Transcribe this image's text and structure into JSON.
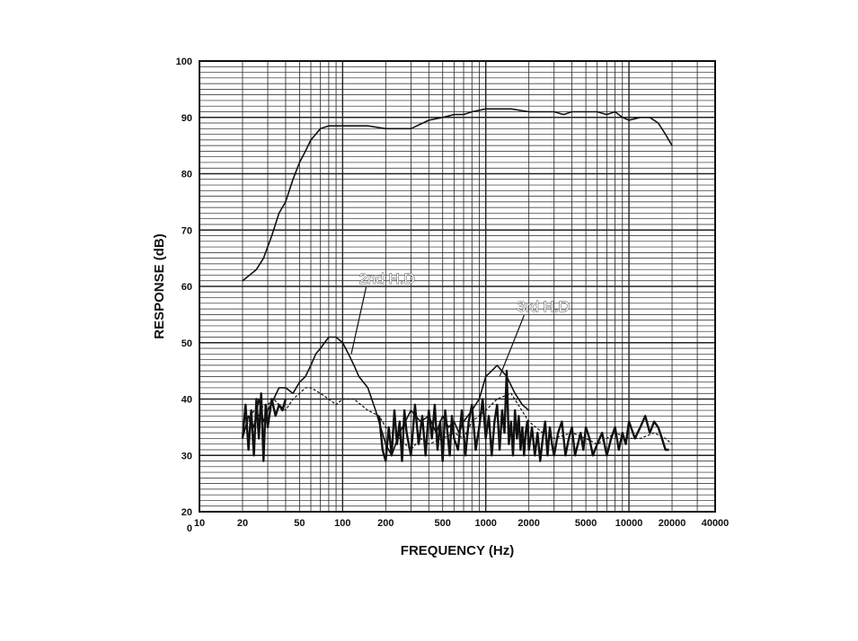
{
  "chart_data": {
    "type": "line",
    "xlabel": "FREQUENCY (Hz)",
    "ylabel": "RESPONSE (dB)",
    "x_scale": "log",
    "xlim": [
      10,
      40000
    ],
    "ylim": [
      20,
      100
    ],
    "grid": true,
    "x_tick_labels": [
      "10",
      "20",
      "50",
      "100",
      "200",
      "500",
      "1000",
      "2000",
      "5000",
      "10000",
      "20000",
      "40000"
    ],
    "y_tick_labels": [
      "20",
      "30",
      "40",
      "50",
      "60",
      "70",
      "80",
      "90",
      "100"
    ],
    "origin_label": "0",
    "annotations": [
      {
        "text": "2nd H.D",
        "points_to": [
          115,
          48
        ]
      },
      {
        "text": "3rd H.D",
        "points_to": [
          1250,
          44
        ]
      }
    ],
    "series": [
      {
        "x": [
          20,
          25,
          28,
          32,
          36,
          40,
          45,
          50,
          55,
          60,
          70,
          80,
          90,
          100,
          120,
          150,
          200,
          300,
          400,
          500,
          600,
          700,
          800,
          1000,
          1200,
          1500,
          2000,
          2500,
          3000,
          3500,
          4000,
          5000,
          6000,
          7000,
          8000,
          9000,
          10000,
          12000,
          14000,
          16000,
          18000,
          20000
        ],
        "y": [
          61,
          63,
          65,
          69,
          73,
          75,
          79,
          82,
          84,
          86,
          88,
          88.5,
          88.5,
          88.5,
          88.5,
          88.5,
          88,
          88,
          89.5,
          90,
          90.5,
          90.5,
          91,
          91.5,
          91.5,
          91.5,
          91,
          91,
          91,
          90.5,
          91,
          91,
          91,
          90.5,
          91,
          90,
          89.5,
          90,
          90,
          89,
          87,
          85
        ]
      },
      {
        "x": [
          20,
          22,
          24,
          26,
          28,
          30,
          33,
          36,
          40,
          45,
          50,
          55,
          60,
          65,
          70,
          80,
          90,
          100,
          110,
          120,
          130,
          150,
          170,
          200,
          220,
          250,
          300,
          350,
          400,
          450,
          500,
          550,
          600,
          650,
          700,
          800,
          900,
          1000,
          1100,
          1200,
          1400,
          1600,
          1800,
          2000
        ],
        "y": [
          33,
          37,
          35,
          40,
          36,
          38,
          40,
          42,
          42,
          41,
          43,
          44,
          46,
          48,
          49,
          51,
          51,
          50,
          48,
          46,
          44,
          42,
          38,
          32,
          30,
          34,
          38,
          36,
          37,
          34,
          37,
          35,
          36,
          34,
          36,
          38,
          40,
          44,
          45,
          46,
          44,
          41,
          39,
          38
        ]
      },
      {
        "x": [
          20,
          22,
          24,
          26,
          28,
          30,
          33,
          36,
          40,
          45,
          50,
          55,
          60,
          70,
          80,
          90,
          100,
          120,
          150,
          180,
          200,
          250,
          300,
          350,
          400,
          500,
          600,
          700,
          800,
          1000,
          1200,
          1500,
          2000,
          2500,
          3000,
          4000,
          5000,
          6000,
          7000,
          8000,
          10000,
          12000,
          15000,
          18000,
          20000
        ],
        "y": [
          34,
          36,
          38,
          37,
          39,
          39,
          40,
          39,
          38,
          40,
          41,
          42,
          42,
          41,
          40,
          39,
          40,
          40,
          38,
          37,
          35,
          33,
          31,
          33,
          32,
          33,
          34,
          33,
          36,
          38,
          40,
          41,
          36,
          34,
          33,
          34,
          33,
          32,
          33,
          34,
          33,
          33,
          34,
          33,
          32
        ]
      },
      {
        "x": [
          20,
          21,
          22,
          23,
          24,
          25,
          26,
          27,
          28,
          29,
          30,
          32,
          34,
          36,
          38,
          40,
          180,
          190,
          200,
          210,
          220,
          230,
          240,
          250,
          260,
          270,
          280,
          300,
          320,
          340,
          360,
          380,
          400,
          420,
          440,
          460,
          480,
          500,
          520,
          540,
          560,
          580,
          600,
          640,
          680,
          720,
          760,
          800,
          850,
          900,
          950,
          1000,
          1050,
          1100,
          1150,
          1200,
          1250,
          1300,
          1350,
          1400,
          1450,
          1500,
          1550,
          1600,
          1650,
          1700,
          1750,
          1800,
          1850,
          1900,
          1950,
          2000,
          2100,
          2200,
          2300,
          2400,
          2500,
          2600,
          2700,
          2800,
          2900,
          3000,
          3200,
          3400,
          3600,
          3800,
          4000,
          4200,
          4400,
          4600,
          4800,
          5000,
          5300,
          5600,
          6000,
          6500,
          7000,
          7500,
          8000,
          8500,
          9000,
          9500,
          10000,
          11000,
          12000,
          13000,
          14000,
          15000,
          16000,
          17000,
          18000,
          19000
        ],
        "y": [
          33,
          39,
          31,
          38,
          30,
          40,
          33,
          41,
          29,
          39,
          35,
          40,
          37,
          39,
          38,
          40,
          37,
          31,
          29,
          35,
          30,
          38,
          32,
          36,
          29,
          38,
          34,
          30,
          39,
          32,
          37,
          30,
          38,
          33,
          39,
          31,
          36,
          29,
          38,
          34,
          30,
          37,
          33,
          31,
          38,
          30,
          36,
          39,
          31,
          35,
          40,
          33,
          37,
          30,
          36,
          39,
          31,
          38,
          34,
          45,
          32,
          36,
          30,
          38,
          33,
          37,
          31,
          35,
          30,
          34,
          36,
          31,
          35,
          30,
          34,
          29,
          33,
          36,
          30,
          35,
          32,
          30,
          34,
          36,
          30,
          33,
          35,
          30,
          32,
          34,
          31,
          35,
          33,
          30,
          32,
          34,
          30,
          33,
          35,
          31,
          34,
          32,
          36,
          33,
          35,
          37,
          34,
          36,
          35,
          33,
          31,
          31
        ]
      }
    ]
  }
}
